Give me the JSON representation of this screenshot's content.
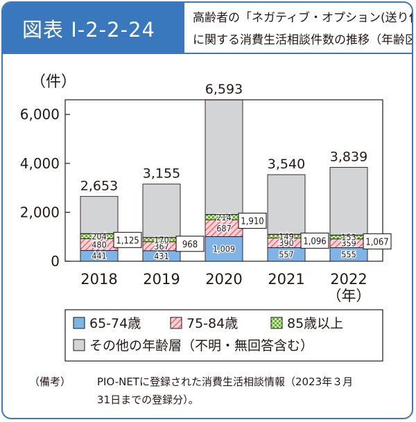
{
  "header": {
    "badge": "図表 I-2-2-24",
    "title_line1": "高齢者の「ネガティブ・オプション(送り付け商法)」",
    "title_line2": "に関する消費生活相談件数の推移（年齢区分別）"
  },
  "colors": {
    "frame": "#3a78bd",
    "s65_74": "#7fb4e6",
    "s75_84": "#f28b95",
    "s85": "#9ccc6e",
    "other": "#d3d4d6"
  },
  "chart_data": {
    "type": "bar",
    "stacked": true,
    "ylabel": "（件）",
    "xlabel": "（年）",
    "ylim": [
      0,
      6600
    ],
    "yticks": [
      0,
      2000,
      4000,
      6000
    ],
    "ytick_labels": [
      "0",
      "2,000",
      "4,000",
      "6,000"
    ],
    "categories": [
      "2018",
      "2019",
      "2020",
      "2021",
      "2022"
    ],
    "series": [
      {
        "name": "65-74歳",
        "values": [
          441,
          431,
          1009,
          557,
          555
        ]
      },
      {
        "name": "75-84歳",
        "values": [
          480,
          367,
          687,
          390,
          359
        ]
      },
      {
        "name": "85歳以上",
        "values": [
          204,
          170,
          214,
          149,
          153
        ]
      },
      {
        "name": "その他の年齢層（不明・無回答含む）",
        "values": [
          1528,
          2187,
          4683,
          2444,
          2772
        ]
      }
    ],
    "value_labels": {
      "s65_74": [
        "441",
        "431",
        "1,009",
        "557",
        "555"
      ],
      "s75_84": [
        "480",
        "367",
        "687",
        "390",
        "359"
      ],
      "s85": [
        "204",
        "170",
        "214",
        "149",
        "153"
      ]
    },
    "totals": [
      2653,
      3155,
      6593,
      3540,
      3839
    ],
    "total_labels": [
      "2,653",
      "3,155",
      "6,593",
      "3,540",
      "3,839"
    ],
    "elderly_totals": [
      1125,
      968,
      1910,
      1096,
      1067
    ],
    "elderly_total_labels": [
      "1,125",
      "968",
      "1,910",
      "1,096",
      "1,067"
    ],
    "legend": {
      "placement": "bottom"
    }
  },
  "notes": {
    "label": "（備考）",
    "line1": "PIO-NETに登録された消費生活相談情報（2023年３月",
    "line2": "31日までの登録分）。"
  }
}
